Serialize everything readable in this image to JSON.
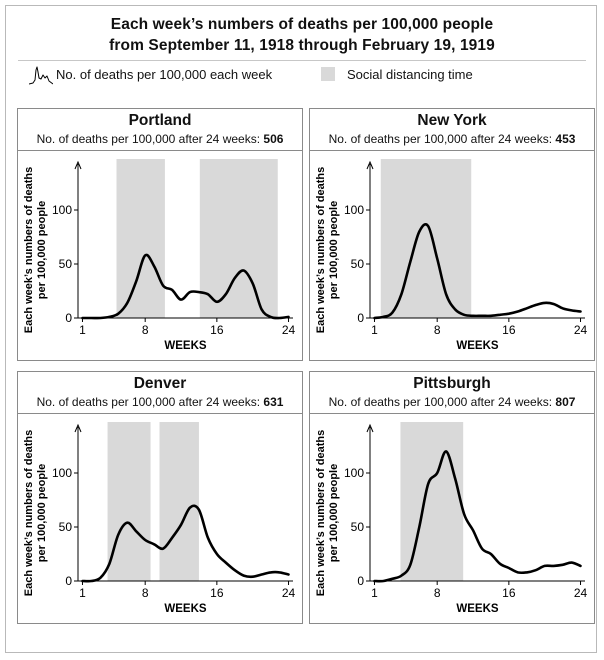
{
  "header": {
    "title_line1": "Each week’s numbers of deaths per 100,000 people",
    "title_line2": "from September 11, 1918 through February 19, 1919"
  },
  "legend": {
    "line_label": "No. of deaths per 100,000 each week",
    "shade_label": "Social distancing time",
    "shade_color": "#d9d9d9",
    "line_color": "#000000"
  },
  "axis_text": {
    "ylabel_line1": "Each week’s numbers of deaths",
    "ylabel_line2": "per 100,000 people",
    "xlabel": "WEEKS",
    "subtitle_prefix": "No. of deaths per 100,000 after 24 weeks:"
  },
  "chart_data": [
    {
      "type": "line",
      "title": "Portland",
      "total_after_24_weeks": "506",
      "xlabel": "WEEKS",
      "ylabel": "Each week’s numbers of deaths per 100,000 people",
      "xlim": [
        0.5,
        24.5
      ],
      "ylim": [
        0,
        125
      ],
      "xticks": [
        1,
        8,
        16,
        24
      ],
      "yticks": [
        0,
        50,
        100
      ],
      "shaded_intervals": [
        [
          4.8,
          10.2
        ],
        [
          14.1,
          22.8
        ]
      ],
      "series": [
        {
          "name": "No. of deaths per 100,000 each week",
          "x": [
            1,
            2,
            3,
            4,
            5,
            6,
            7,
            8,
            9,
            10,
            11,
            12,
            13,
            14,
            15,
            16,
            17,
            18,
            19,
            20,
            21,
            22,
            23,
            24
          ],
          "y": [
            0,
            0,
            0,
            1,
            4,
            14,
            34,
            58,
            48,
            30,
            26,
            17,
            24,
            24,
            22,
            15,
            22,
            37,
            44,
            32,
            8,
            1,
            0,
            1
          ]
        }
      ]
    },
    {
      "type": "line",
      "title": "New York",
      "total_after_24_weeks": "453",
      "xlabel": "WEEKS",
      "ylabel": "Each week’s numbers of deaths per 100,000 people",
      "xlim": [
        0.5,
        24.5
      ],
      "ylim": [
        0,
        125
      ],
      "xticks": [
        1,
        8,
        16,
        24
      ],
      "yticks": [
        0,
        50,
        100
      ],
      "shaded_intervals": [
        [
          1.7,
          11.8
        ]
      ],
      "series": [
        {
          "name": "No. of deaths per 100,000 each week",
          "x": [
            1,
            2,
            3,
            4,
            5,
            6,
            7,
            8,
            9,
            10,
            11,
            12,
            13,
            14,
            15,
            16,
            17,
            18,
            19,
            20,
            21,
            22,
            23,
            24
          ],
          "y": [
            0,
            1,
            5,
            22,
            52,
            80,
            85,
            55,
            22,
            8,
            3,
            2,
            2,
            2,
            3,
            4,
            6,
            9,
            12,
            14,
            13,
            9,
            7,
            6
          ]
        }
      ]
    },
    {
      "type": "line",
      "title": "Denver",
      "total_after_24_weeks": "631",
      "xlabel": "WEEKS",
      "ylabel": "Each week’s numbers of deaths per 100,000 people",
      "xlim": [
        0.5,
        24.5
      ],
      "ylim": [
        0,
        125
      ],
      "xticks": [
        1,
        8,
        16,
        24
      ],
      "yticks": [
        0,
        50,
        100
      ],
      "shaded_intervals": [
        [
          3.8,
          8.6
        ],
        [
          9.6,
          14.0
        ]
      ],
      "series": [
        {
          "name": "No. of deaths per 100,000 each week",
          "x": [
            1,
            2,
            3,
            4,
            5,
            6,
            7,
            8,
            9,
            10,
            11,
            12,
            13,
            14,
            15,
            16,
            17,
            18,
            19,
            20,
            21,
            22,
            23,
            24
          ],
          "y": [
            0,
            0,
            3,
            16,
            43,
            54,
            46,
            38,
            34,
            30,
            40,
            52,
            68,
            66,
            40,
            25,
            17,
            10,
            5,
            4,
            6,
            8,
            8,
            6
          ]
        }
      ]
    },
    {
      "type": "line",
      "title": "Pittsburgh",
      "total_after_24_weeks": "807",
      "xlabel": "WEEKS",
      "ylabel": "Each week’s numbers of deaths per 100,000 people",
      "xlim": [
        0.5,
        24.5
      ],
      "ylim": [
        0,
        125
      ],
      "xticks": [
        1,
        8,
        16,
        24
      ],
      "yticks": [
        0,
        50,
        100
      ],
      "shaded_intervals": [
        [
          3.9,
          10.9
        ]
      ],
      "series": [
        {
          "name": "No. of deaths per 100,000 each week",
          "x": [
            1,
            2,
            3,
            4,
            5,
            6,
            7,
            8,
            9,
            10,
            11,
            12,
            13,
            14,
            15,
            16,
            17,
            18,
            19,
            20,
            21,
            22,
            23,
            24
          ],
          "y": [
            0,
            0,
            2,
            5,
            15,
            50,
            90,
            100,
            120,
            95,
            62,
            47,
            30,
            25,
            16,
            12,
            8,
            8,
            10,
            14,
            14,
            15,
            17,
            14
          ]
        }
      ]
    }
  ]
}
